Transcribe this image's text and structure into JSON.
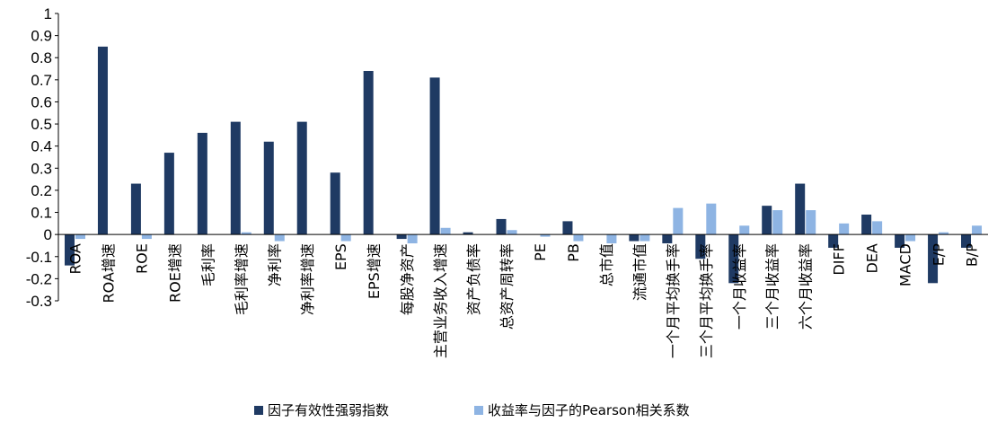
{
  "chart_data": {
    "type": "bar",
    "categories": [
      "ROA",
      "ROA增速",
      "ROE",
      "ROE增速",
      "毛利率",
      "毛利率增速",
      "净利率",
      "净利率增速",
      "EPS",
      "EPS增速",
      "每股净资产",
      "主营业务收入增速",
      "资产负债率",
      "总资产周转率",
      "PE",
      "PB",
      "总市值",
      "流通市值",
      "一个月平均换手率",
      "三个月平均换手率",
      "一个月收益率",
      "三个月收益率",
      "六个月收益率",
      "DIFF",
      "DEA",
      "MACD",
      "E/P",
      "B/P"
    ],
    "series": [
      {
        "name": "因子有效性强弱指数",
        "color": "#1f3a63",
        "values": [
          -0.14,
          0.85,
          0.23,
          0.37,
          0.46,
          0.51,
          0.42,
          0.51,
          0.28,
          0.74,
          -0.02,
          0.71,
          0.01,
          0.07,
          0.0,
          0.06,
          0.0,
          -0.03,
          -0.04,
          -0.11,
          -0.22,
          0.13,
          0.23,
          -0.06,
          0.09,
          -0.06,
          -0.22,
          -0.06
        ]
      },
      {
        "name": "收益率与因子的Pearson相关系数",
        "color": "#8eb4e3",
        "values": [
          -0.02,
          0.0,
          -0.02,
          0.0,
          0.0,
          0.01,
          -0.03,
          0.0,
          -0.03,
          0.0,
          -0.04,
          0.03,
          0.0,
          0.02,
          -0.01,
          -0.03,
          -0.04,
          -0.03,
          0.12,
          0.14,
          0.04,
          0.11,
          0.11,
          0.05,
          0.06,
          -0.03,
          0.01,
          0.04
        ]
      }
    ],
    "ylim": [
      -0.3,
      1
    ],
    "yticks": [
      "1",
      "0.9",
      "0.8",
      "0.7",
      "0.6",
      "0.5",
      "0.4",
      "0.3",
      "0.2",
      "0.1",
      "0",
      "-0.1",
      "-0.2",
      "-0.3"
    ],
    "legend_position": "bottom",
    "grid": false
  }
}
